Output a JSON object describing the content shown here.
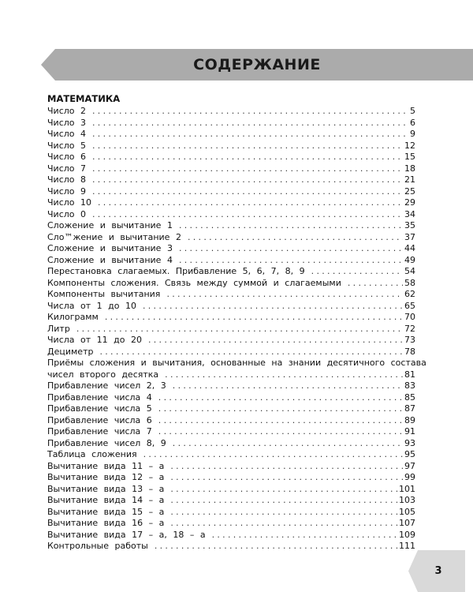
{
  "header": {
    "title": "СОДЕРЖАНИЕ"
  },
  "section": "МАТЕМАТИКА",
  "entries": [
    {
      "title": "Число 2",
      "page": "5"
    },
    {
      "title": "Число 3",
      "page": "6"
    },
    {
      "title": "Число 4",
      "page": "9"
    },
    {
      "title": "Число 5",
      "page": "12"
    },
    {
      "title": "Число 6",
      "page": "15"
    },
    {
      "title": "Число 7",
      "page": "18"
    },
    {
      "title": "Число 8",
      "page": "21"
    },
    {
      "title": "Число 9",
      "page": "25"
    },
    {
      "title": "Число 10",
      "page": "29"
    },
    {
      "title": "Число 0",
      "page": "34"
    },
    {
      "title": "Сложение и вычитание 1",
      "page": "35"
    },
    {
      "title": "Сло™жение и вычитание 2",
      "page": "37"
    },
    {
      "title": "Сложение и вычитание 3",
      "page": "44"
    },
    {
      "title": "Сложение и вычитание 4",
      "page": "49"
    },
    {
      "title": "Перестановка слагаемых. Прибавление 5, 6, 7, 8, 9",
      "page": "54"
    },
    {
      "title": "Компоненты сложения. Связь между суммой и слагаемыми",
      "page": "58"
    },
    {
      "title": "Компоненты вычитания",
      "page": "62"
    },
    {
      "title": "Числа от 1 до 10",
      "page": "65"
    },
    {
      "title": "Килограмм",
      "page": "70"
    },
    {
      "title": "Литр",
      "page": "72"
    },
    {
      "title": "Числа от 11 до 20",
      "page": "73"
    },
    {
      "title": "Дециметр",
      "page": "78"
    },
    {
      "title": "Приёмы сложения и вычитания, основанные на знании десятичного состава",
      "page": ""
    },
    {
      "title": "чисел второго десятка",
      "page": "81"
    },
    {
      "title": "Прибавление чисел 2, 3",
      "page": "83"
    },
    {
      "title": "Прибавление числа 4",
      "page": "85"
    },
    {
      "title": "Прибавление числа 5",
      "page": "87"
    },
    {
      "title": "Прибавление числа 6",
      "page": "89"
    },
    {
      "title": "Прибавление числа 7",
      "page": "91"
    },
    {
      "title": "Прибавление чисел 8, 9",
      "page": "93"
    },
    {
      "title": "Таблица сложения",
      "page": "95"
    },
    {
      "title": "Вычитание вида 11 – а",
      "page": "97"
    },
    {
      "title": "Вычитание вида 12 – а",
      "page": "99"
    },
    {
      "title": "Вычитание вида 13 – а",
      "page": "101"
    },
    {
      "title": "Вычитание вида 14 – а",
      "page": "103"
    },
    {
      "title": "Вычитание вида 15 – а",
      "page": "105"
    },
    {
      "title": "Вычитание вида 16 – а",
      "page": "107"
    },
    {
      "title": "Вычитание вида 17 – а, 18 – а",
      "page": "109"
    },
    {
      "title": "Контрольные работы",
      "page": "111"
    }
  ],
  "page_number": "3"
}
